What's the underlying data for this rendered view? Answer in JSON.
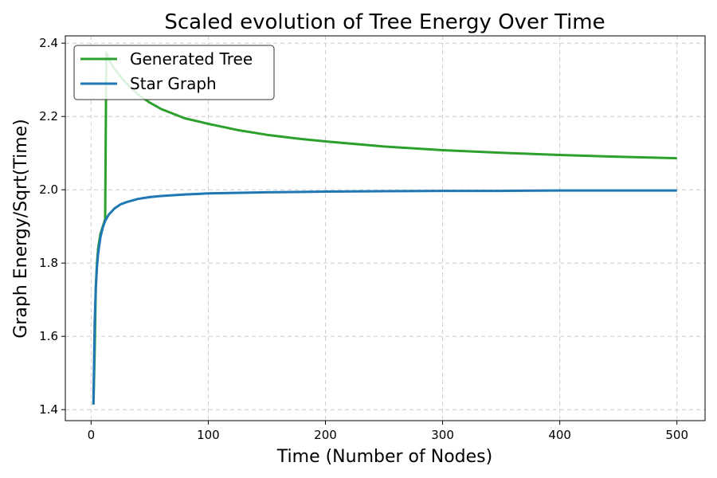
{
  "chart_data": {
    "type": "line",
    "title": "Scaled evolution of Tree Energy Over Time",
    "xlabel": "Time (Number of Nodes)",
    "ylabel": "Graph Energy/Sqrt(Time)",
    "xlim": [
      -22,
      524
    ],
    "ylim": [
      1.37,
      2.42
    ],
    "xticks": [
      0,
      100,
      200,
      300,
      400,
      500
    ],
    "xtick_labels": [
      "0",
      "100",
      "200",
      "300",
      "400",
      "500"
    ],
    "yticks": [
      1.4,
      1.6,
      1.8,
      2.0,
      2.2,
      2.4
    ],
    "ytick_labels": [
      "1.4",
      "1.6",
      "1.8",
      "2.0",
      "2.2",
      "2.4"
    ],
    "grid": true,
    "legend_position": "upper-left",
    "series": [
      {
        "name": "Generated Tree",
        "color": "#2ca02c",
        "x": [
          2,
          3,
          4,
          5,
          6,
          8,
          10,
          12,
          13,
          14,
          16,
          20,
          25,
          30,
          40,
          50,
          60,
          80,
          100,
          125,
          150,
          175,
          200,
          250,
          300,
          350,
          400,
          450,
          500
        ],
        "y": [
          1.414,
          1.55,
          1.732,
          1.8,
          1.84,
          1.88,
          1.9,
          1.92,
          2.374,
          2.365,
          2.35,
          2.33,
          2.31,
          2.29,
          2.26,
          2.238,
          2.22,
          2.195,
          2.18,
          2.163,
          2.15,
          2.14,
          2.132,
          2.118,
          2.108,
          2.101,
          2.095,
          2.09,
          2.086
        ]
      },
      {
        "name": "Star Graph",
        "color": "#1f77b4",
        "x": [
          2,
          3,
          4,
          5,
          6,
          8,
          10,
          12,
          15,
          20,
          25,
          30,
          40,
          50,
          60,
          80,
          100,
          150,
          200,
          250,
          300,
          350,
          400,
          450,
          500
        ],
        "y": [
          1.414,
          1.633,
          1.732,
          1.789,
          1.826,
          1.871,
          1.897,
          1.915,
          1.932,
          1.949,
          1.96,
          1.966,
          1.975,
          1.98,
          1.983,
          1.987,
          1.99,
          1.993,
          1.995,
          1.996,
          1.997,
          1.997,
          1.998,
          1.998,
          1.998
        ]
      }
    ]
  }
}
